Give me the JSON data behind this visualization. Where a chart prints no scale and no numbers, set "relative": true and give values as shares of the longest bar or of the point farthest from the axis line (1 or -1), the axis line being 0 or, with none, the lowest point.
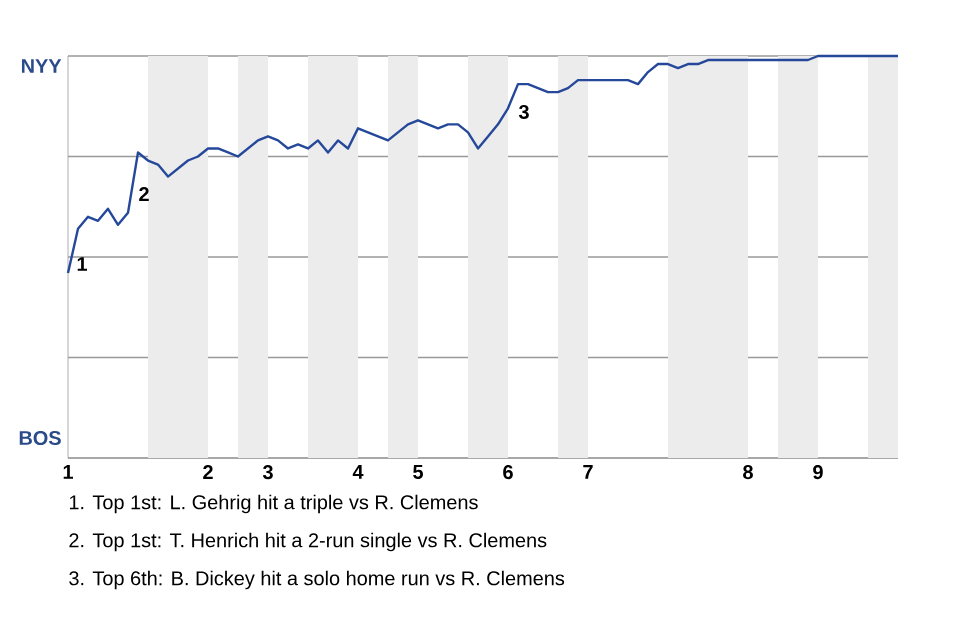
{
  "chart_data": {
    "type": "line",
    "color": "#25489a",
    "relative": true,
    "categories": [
      "1",
      null,
      null,
      null,
      null,
      null,
      null,
      null,
      null,
      null,
      null,
      null,
      null,
      null,
      "2",
      null,
      null,
      null,
      null,
      null,
      "3",
      null,
      null,
      null,
      null,
      null,
      null,
      null,
      null,
      "4",
      null,
      null,
      null,
      null,
      null,
      "5",
      null,
      null,
      null,
      null,
      null,
      null,
      null,
      null,
      "6",
      null,
      null,
      null,
      null,
      null,
      null,
      null,
      "7",
      null,
      null,
      null,
      null,
      null,
      null,
      null,
      null,
      null,
      null,
      null,
      null,
      null,
      null,
      null,
      "8",
      null,
      null,
      null,
      null,
      null,
      null,
      "9",
      null,
      null,
      null,
      null,
      null,
      null,
      null,
      null
    ],
    "values": [
      0.46,
      0.57,
      0.6,
      0.59,
      0.62,
      0.58,
      0.61,
      0.76,
      0.74,
      0.73,
      0.7,
      0.72,
      0.74,
      0.75,
      0.77,
      0.77,
      0.76,
      0.75,
      0.77,
      0.79,
      0.8,
      0.79,
      0.77,
      0.78,
      0.77,
      0.79,
      0.76,
      0.79,
      0.77,
      0.82,
      0.81,
      0.8,
      0.79,
      0.81,
      0.83,
      0.84,
      0.83,
      0.82,
      0.83,
      0.83,
      0.81,
      0.77,
      0.8,
      0.83,
      0.87,
      0.93,
      0.93,
      0.92,
      0.91,
      0.91,
      0.92,
      0.94,
      0.94,
      0.94,
      0.94,
      0.94,
      0.94,
      0.93,
      0.96,
      0.98,
      0.98,
      0.97,
      0.98,
      0.98,
      0.99,
      0.99,
      0.99,
      0.99,
      0.99,
      0.99,
      0.99,
      0.99,
      0.99,
      0.99,
      0.99,
      1,
      1,
      1,
      1,
      1,
      1,
      1,
      1,
      1
    ],
    "grid": "y",
    "annotations": [
      "NYY",
      "BOS",
      "1",
      "2",
      "3",
      "1. Top 1st: L. Gehrig hit a triple vs R. Clemens",
      "2. Top 1st: T. Henrich hit a 2-run single vs R. Clemens",
      "3. Top 6th: B. Dickey hit a solo home run vs R. Clemens"
    ]
  }
}
